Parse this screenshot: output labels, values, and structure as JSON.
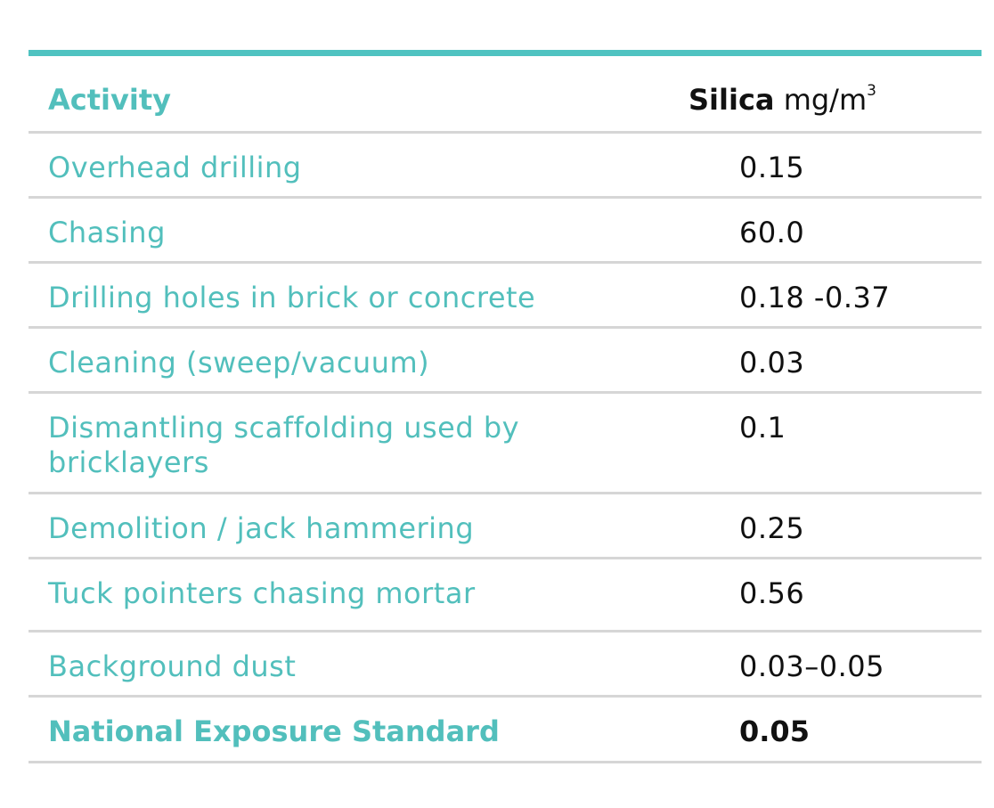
{
  "table": {
    "header": {
      "activity": "Activity",
      "silica_label": "Silica",
      "unit": "mg/m",
      "unit_superscript": "3"
    },
    "rows": [
      {
        "activity": "Overhead drilling",
        "silica": "0.15"
      },
      {
        "activity": "Chasing",
        "silica": "60.0"
      },
      {
        "activity": "Drilling holes in brick or concrete",
        "silica": "0.18 -0.37"
      },
      {
        "activity": "Cleaning (sweep/vacuum)",
        "silica": "0.03"
      },
      {
        "activity": "Dismantling scaffolding used by bricklayers",
        "silica": "0.1"
      },
      {
        "activity": "Demolition / jack hammering",
        "silica": "0.25"
      },
      {
        "activity": "Tuck pointers chasing mortar",
        "silica": "0.56"
      },
      {
        "activity": "Background dust",
        "silica": "0.03–0.05"
      }
    ],
    "footer": {
      "activity": "National Exposure Standard",
      "silica": "0.05"
    }
  },
  "colors": {
    "accent_teal": "#4fc3c1",
    "activity_text": "#52bfbc",
    "value_text": "#111111",
    "rule_grey": "#d6d6d6"
  }
}
